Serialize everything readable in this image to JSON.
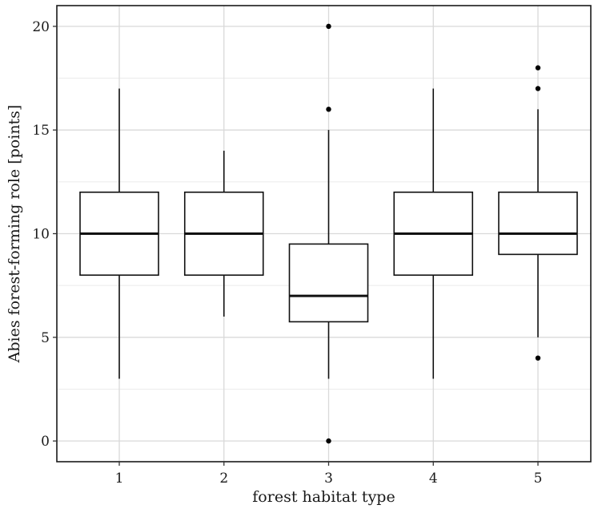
{
  "chart_data": {
    "type": "boxplot",
    "xlabel": "forest habitat type",
    "ylabel": "Abies forest-forming role [points]",
    "ylim": [
      -1,
      21
    ],
    "yticks": [
      0,
      5,
      10,
      15,
      20
    ],
    "grid": true,
    "categories": [
      "1",
      "2",
      "3",
      "4",
      "5"
    ],
    "boxes": [
      {
        "category": "1",
        "whisker_low": 3,
        "q1": 8,
        "median": 10,
        "q3": 12,
        "whisker_high": 17,
        "outliers": []
      },
      {
        "category": "2",
        "whisker_low": 6,
        "q1": 8,
        "median": 10,
        "q3": 12,
        "whisker_high": 14,
        "outliers": []
      },
      {
        "category": "3",
        "whisker_low": 3,
        "q1": 5.75,
        "median": 7,
        "q3": 9.5,
        "whisker_high": 15,
        "outliers": [
          0,
          16,
          20
        ]
      },
      {
        "category": "4",
        "whisker_low": 3,
        "q1": 8,
        "median": 10,
        "q3": 12,
        "whisker_high": 17,
        "outliers": []
      },
      {
        "category": "5",
        "whisker_low": 5,
        "q1": 9,
        "median": 10,
        "q3": 12,
        "whisker_high": 16,
        "outliers": [
          4,
          17,
          18
        ]
      }
    ]
  }
}
